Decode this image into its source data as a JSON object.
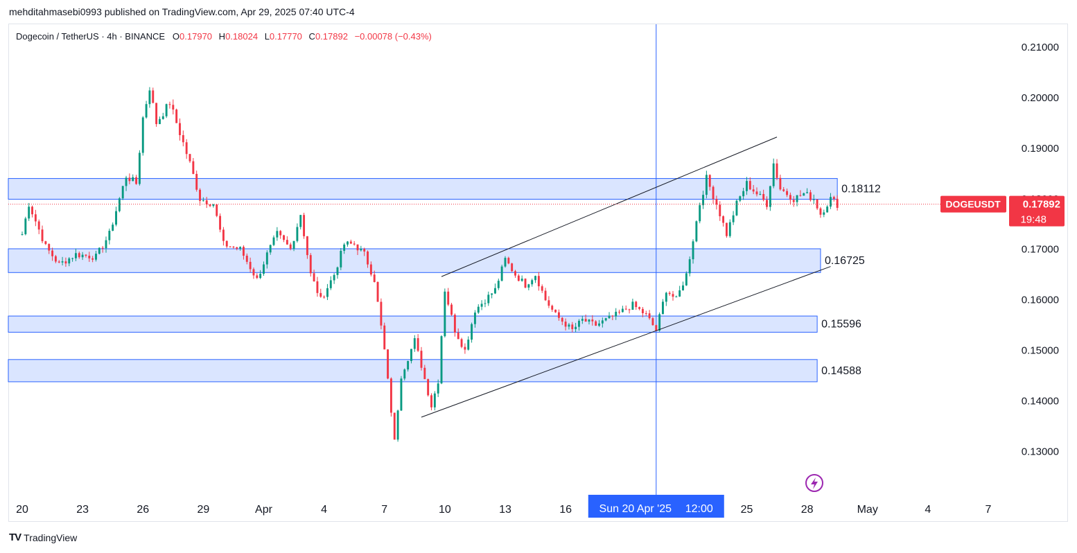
{
  "header": {
    "publisher_line": "mehditahmasebi0993 published on TradingView.com, Apr 29, 2025 07:40 UTC-4"
  },
  "legend": {
    "symbol_line": "Dogecoin / TetherUS · 4h · BINANCE",
    "open_label": "O",
    "open_value": "0.17970",
    "high_label": "H",
    "high_value": "0.18024",
    "low_label": "L",
    "low_value": "0.17770",
    "close_label": "C",
    "close_value": "0.17892",
    "change": "−0.00078 (−0.43%)"
  },
  "colors": {
    "up": "#089981",
    "down": "#f23645",
    "zone_fill": "#d6e2ff",
    "zone_stroke": "#2962ff",
    "crosshair": "#2962ff",
    "channel": "#131722",
    "price_tag": "#f23645"
  },
  "chart_data": {
    "type": "candlestick",
    "symbol": "DOGEUSDT",
    "timeframe": "4h",
    "ylim": [
      0.122,
      0.2145
    ],
    "yticks": [
      "0.21000",
      "0.20000",
      "0.19000",
      "0.18000",
      "0.17000",
      "0.16000",
      "0.15000",
      "0.14000",
      "0.13000"
    ],
    "yticks_values": [
      0.21,
      0.2,
      0.19,
      0.18,
      0.17,
      0.16,
      0.15,
      0.14,
      0.13
    ],
    "xticks": [
      {
        "label": "20",
        "date": "2025-03-20"
      },
      {
        "label": "23",
        "date": "2025-03-23"
      },
      {
        "label": "26",
        "date": "2025-03-26"
      },
      {
        "label": "29",
        "date": "2025-03-29"
      },
      {
        "label": "Apr",
        "date": "2025-04-01"
      },
      {
        "label": "4",
        "date": "2025-04-04"
      },
      {
        "label": "7",
        "date": "2025-04-07"
      },
      {
        "label": "10",
        "date": "2025-04-10"
      },
      {
        "label": "13",
        "date": "2025-04-13"
      },
      {
        "label": "16",
        "date": "2025-04-16"
      },
      {
        "label": "25",
        "date": "2025-04-25"
      },
      {
        "label": "28",
        "date": "2025-04-28"
      },
      {
        "label": "May",
        "date": "2025-05-01"
      },
      {
        "label": "4",
        "date": "2025-05-04"
      },
      {
        "label": "7",
        "date": "2025-05-07"
      }
    ],
    "x_start": "2025-03-20",
    "x_end": "2025-05-08",
    "crosshair": {
      "label": "Sun 20 Apr '25",
      "time": "12:00",
      "date": "2025-04-20T12:00"
    },
    "last_price": {
      "label": "DOGEUSDT",
      "value": "0.17892",
      "countdown": "19:48",
      "price": 0.17892
    },
    "zones": [
      {
        "label": "0.18112",
        "top": 0.184,
        "bottom": 0.1799,
        "start": "2025-03-20",
        "end": "2025-04-29T12:00"
      },
      {
        "label": "0.16725",
        "top": 0.1701,
        "bottom": 0.1654,
        "start": "2025-03-20",
        "end": "2025-04-28T16:00"
      },
      {
        "label": "0.15596",
        "top": 0.1568,
        "bottom": 0.1536,
        "start": "2025-03-20",
        "end": "2025-04-28T12:00"
      },
      {
        "label": "0.14588",
        "top": 0.1482,
        "bottom": 0.1438,
        "start": "2025-03-20",
        "end": "2025-04-28T12:00"
      }
    ],
    "channel": {
      "upper": [
        [
          "2025-04-09T20:00",
          0.1646
        ],
        [
          "2025-04-26T12:00",
          0.1922
        ]
      ],
      "lower": [
        [
          "2025-04-08T20:00",
          0.1368
        ],
        [
          "2025-04-29T04:00",
          0.1666
        ]
      ]
    },
    "anchors": [
      [
        "2025-03-20T00:00",
        0.173
      ],
      [
        "2025-03-20T08:00",
        0.179
      ],
      [
        "2025-03-21T04:00",
        0.1705
      ],
      [
        "2025-03-21T20:00",
        0.167
      ],
      [
        "2025-03-22T16:00",
        0.169
      ],
      [
        "2025-03-23T16:00",
        0.1685
      ],
      [
        "2025-03-24T08:00",
        0.173
      ],
      [
        "2025-03-24T20:00",
        0.18
      ],
      [
        "2025-03-25T04:00",
        0.1845
      ],
      [
        "2025-03-25T16:00",
        0.183
      ],
      [
        "2025-03-26T00:00",
        0.196
      ],
      [
        "2025-03-26T08:00",
        0.202
      ],
      [
        "2025-03-26T16:00",
        0.195
      ],
      [
        "2025-03-27T08:00",
        0.199
      ],
      [
        "2025-03-27T20:00",
        0.193
      ],
      [
        "2025-03-28T08:00",
        0.187
      ],
      [
        "2025-03-28T20:00",
        0.18
      ],
      [
        "2025-03-29T12:00",
        0.179
      ],
      [
        "2025-03-30T00:00",
        0.171
      ],
      [
        "2025-03-30T20:00",
        0.17
      ],
      [
        "2025-03-31T16:00",
        0.164
      ],
      [
        "2025-04-01T04:00",
        0.169
      ],
      [
        "2025-04-01T16:00",
        0.173
      ],
      [
        "2025-04-02T08:00",
        0.17
      ],
      [
        "2025-04-02T20:00",
        0.177
      ],
      [
        "2025-04-03T08:00",
        0.165
      ],
      [
        "2025-04-03T20:00",
        0.16
      ],
      [
        "2025-04-04T12:00",
        0.165
      ],
      [
        "2025-04-05T00:00",
        0.171
      ],
      [
        "2025-04-05T12:00",
        0.171
      ],
      [
        "2025-04-06T00:00",
        0.169
      ],
      [
        "2025-04-06T12:00",
        0.164
      ],
      [
        "2025-04-07T00:00",
        0.15
      ],
      [
        "2025-04-07T12:00",
        0.132
      ],
      [
        "2025-04-07T20:00",
        0.145
      ],
      [
        "2025-04-08T12:00",
        0.152
      ],
      [
        "2025-04-08T20:00",
        0.147
      ],
      [
        "2025-04-09T08:00",
        0.139
      ],
      [
        "2025-04-09T16:00",
        0.144
      ],
      [
        "2025-04-10T00:00",
        0.162
      ],
      [
        "2025-04-10T12:00",
        0.154
      ],
      [
        "2025-04-11T00:00",
        0.15
      ],
      [
        "2025-04-11T12:00",
        0.158
      ],
      [
        "2025-04-12T12:00",
        0.162
      ],
      [
        "2025-04-13T00:00",
        0.168
      ],
      [
        "2025-04-13T12:00",
        0.165
      ],
      [
        "2025-04-14T00:00",
        0.163
      ],
      [
        "2025-04-14T12:00",
        0.165
      ],
      [
        "2025-04-15T00:00",
        0.16
      ],
      [
        "2025-04-15T12:00",
        0.157
      ],
      [
        "2025-04-16T08:00",
        0.154
      ],
      [
        "2025-04-16T20:00",
        0.156
      ],
      [
        "2025-04-17T12:00",
        0.155
      ],
      [
        "2025-04-18T12:00",
        0.157
      ],
      [
        "2025-04-19T08:00",
        0.159
      ],
      [
        "2025-04-20T00:00",
        0.157
      ],
      [
        "2025-04-20T12:00",
        0.154
      ],
      [
        "2025-04-21T00:00",
        0.162
      ],
      [
        "2025-04-21T12:00",
        0.16
      ],
      [
        "2025-04-22T00:00",
        0.165
      ],
      [
        "2025-04-22T08:00",
        0.172
      ],
      [
        "2025-04-22T16:00",
        0.179
      ],
      [
        "2025-04-23T00:00",
        0.184
      ],
      [
        "2025-04-23T12:00",
        0.179
      ],
      [
        "2025-04-24T00:00",
        0.173
      ],
      [
        "2025-04-24T12:00",
        0.179
      ],
      [
        "2025-04-25T00:00",
        0.183
      ],
      [
        "2025-04-25T12:00",
        0.181
      ],
      [
        "2025-04-26T00:00",
        0.179
      ],
      [
        "2025-04-26T08:00",
        0.187
      ],
      [
        "2025-04-26T16:00",
        0.182
      ],
      [
        "2025-04-27T08:00",
        0.18
      ],
      [
        "2025-04-27T20:00",
        0.181
      ],
      [
        "2025-04-28T08:00",
        0.18
      ],
      [
        "2025-04-28T16:00",
        0.177
      ],
      [
        "2025-04-29T04:00",
        0.18
      ],
      [
        "2025-04-29T12:00",
        0.1789
      ]
    ],
    "volatility_pct": 0.007
  },
  "footer": {
    "logo_text": "TV",
    "brand": "TradingView"
  }
}
